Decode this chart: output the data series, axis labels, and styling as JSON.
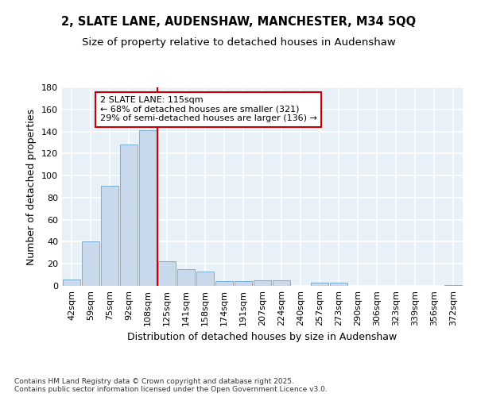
{
  "title_line1": "2, SLATE LANE, AUDENSHAW, MANCHESTER, M34 5QQ",
  "title_line2": "Size of property relative to detached houses in Audenshaw",
  "xlabel": "Distribution of detached houses by size in Audenshaw",
  "ylabel": "Number of detached properties",
  "categories": [
    "42sqm",
    "59sqm",
    "75sqm",
    "92sqm",
    "108sqm",
    "125sqm",
    "141sqm",
    "158sqm",
    "174sqm",
    "191sqm",
    "207sqm",
    "224sqm",
    "240sqm",
    "257sqm",
    "273sqm",
    "290sqm",
    "306sqm",
    "323sqm",
    "339sqm",
    "356sqm",
    "372sqm"
  ],
  "values": [
    6,
    40,
    91,
    128,
    141,
    22,
    15,
    13,
    4,
    4,
    5,
    5,
    0,
    3,
    3,
    0,
    0,
    0,
    0,
    0,
    1
  ],
  "bar_color": "#c8d9eb",
  "bar_edge_color": "#7aafd4",
  "vline_x_index": 4,
  "vline_color": "#cc0000",
  "annotation_text": "2 SLATE LANE: 115sqm\n← 68% of detached houses are smaller (321)\n29% of semi-detached houses are larger (136) →",
  "annotation_box_edgecolor": "#cc0000",
  "ylim": [
    0,
    180
  ],
  "yticks": [
    0,
    20,
    40,
    60,
    80,
    100,
    120,
    140,
    160,
    180
  ],
  "bg_color": "#e8f0f8",
  "grid_color": "#ffffff",
  "footer_line1": "Contains HM Land Registry data © Crown copyright and database right 2025.",
  "footer_line2": "Contains public sector information licensed under the Open Government Licence v3.0.",
  "title_fontsize": 10.5,
  "subtitle_fontsize": 9.5,
  "axis_label_fontsize": 9,
  "tick_fontsize": 8,
  "annotation_fontsize": 8,
  "footer_fontsize": 6.5
}
